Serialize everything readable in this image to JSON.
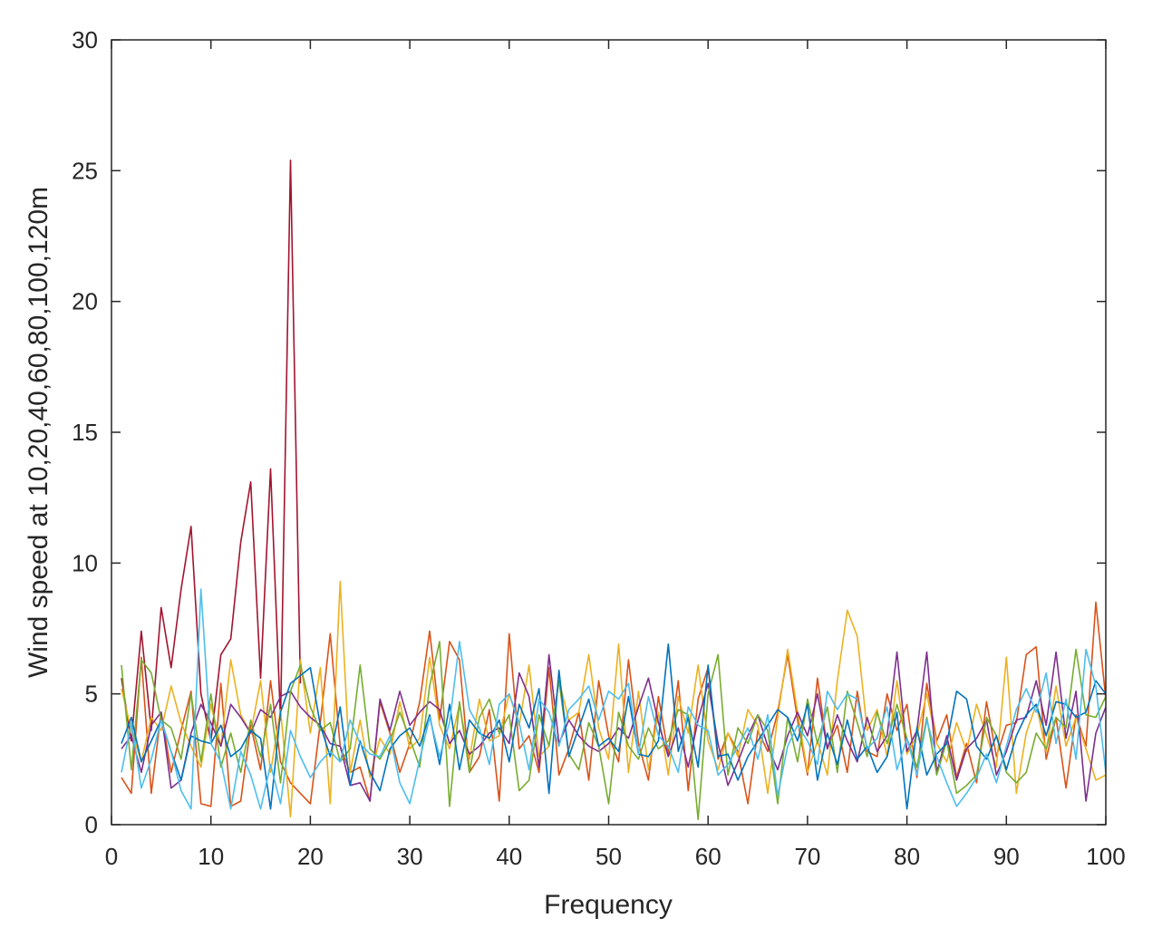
{
  "chart_data": {
    "type": "line",
    "title": "",
    "xlabel": "Frequency",
    "ylabel": "Wind speed at 10,20,40,60,80,100,120m",
    "xlim": [
      0,
      100
    ],
    "ylim": [
      0,
      30
    ],
    "xticks": [
      0,
      10,
      20,
      30,
      40,
      50,
      60,
      70,
      80,
      90,
      100
    ],
    "yticks": [
      0,
      5,
      10,
      15,
      20,
      25,
      30
    ],
    "grid": false,
    "legend": "none",
    "series": [
      {
        "color": "#A2142F",
        "x": [
          1,
          2,
          3,
          4,
          5,
          6,
          7,
          8,
          9,
          10,
          11,
          12,
          13,
          14,
          15,
          16,
          17,
          18,
          19
        ],
        "y": [
          5.6,
          3.2,
          7.4,
          3.6,
          8.3,
          6.0,
          9.0,
          11.4,
          5.0,
          3.2,
          6.5,
          7.1,
          10.8,
          13.1,
          5.6,
          13.6,
          4.0,
          25.4,
          5.4
        ]
      },
      {
        "color": "#D95319",
        "x": [
          1,
          2,
          3,
          4,
          5,
          6,
          7,
          8,
          9,
          10,
          11,
          12,
          13,
          14,
          15,
          16,
          17,
          18,
          19,
          20,
          21,
          22,
          23,
          24,
          25,
          26,
          27,
          28,
          29,
          30,
          31,
          32,
          33,
          34,
          35,
          36,
          37,
          38,
          39,
          40,
          41,
          42,
          43,
          44,
          45,
          46,
          47,
          48,
          49,
          50,
          51,
          52,
          53,
          54,
          55,
          56,
          57,
          58,
          59,
          60,
          61,
          62,
          63,
          64,
          65,
          66,
          67,
          68,
          69,
          70,
          71,
          72,
          73,
          74,
          75,
          76,
          77,
          78,
          79,
          80,
          81,
          82,
          83,
          84,
          85,
          86,
          87,
          88,
          89,
          90,
          91,
          92,
          93,
          94,
          95,
          96,
          97,
          98,
          99,
          100
        ],
        "y": [
          1.8,
          1.2,
          6.4,
          1.2,
          4.3,
          2.0,
          3.6,
          5.1,
          0.8,
          0.7,
          5.4,
          0.7,
          0.9,
          3.8,
          2.1,
          5.5,
          2.4,
          1.6,
          1.2,
          0.8,
          3.9,
          7.3,
          3.0,
          2.0,
          2.2,
          0.9,
          4.7,
          3.5,
          2.0,
          3.1,
          4.7,
          7.4,
          4.0,
          7.0,
          6.3,
          2.0,
          2.6,
          4.4,
          0.9,
          7.3,
          2.9,
          3.4,
          2.0,
          6.0,
          1.9,
          2.9,
          4.3,
          1.7,
          5.5,
          3.4,
          2.4,
          6.3,
          3.1,
          1.7,
          4.9,
          2.7,
          5.5,
          1.3,
          4.8,
          6.0,
          2.5,
          3.5,
          2.8,
          0.8,
          3.6,
          2.8,
          4.3,
          6.5,
          4.0,
          1.9,
          5.6,
          2.9,
          3.8,
          2.0,
          5.1,
          2.8,
          2.6,
          5.0,
          3.6,
          4.6,
          1.8,
          5.4,
          3.2,
          4.2,
          1.8,
          3.1,
          1.6,
          4.7,
          2.6,
          3.8,
          3.9,
          6.5,
          6.8,
          2.5,
          4.1,
          1.4,
          4.2,
          3.0,
          8.5,
          4.8
        ]
      },
      {
        "color": "#EDB120",
        "x": [
          1,
          2,
          3,
          4,
          5,
          6,
          7,
          8,
          9,
          10,
          11,
          12,
          13,
          14,
          15,
          16,
          17,
          18,
          19,
          20,
          21,
          22,
          23,
          24,
          25,
          26,
          27,
          28,
          29,
          30,
          31,
          32,
          33,
          34,
          35,
          36,
          37,
          38,
          39,
          40,
          41,
          42,
          43,
          44,
          45,
          46,
          47,
          48,
          49,
          50,
          51,
          52,
          53,
          54,
          55,
          56,
          57,
          58,
          59,
          60,
          61,
          62,
          63,
          64,
          65,
          66,
          67,
          68,
          69,
          70,
          71,
          72,
          73,
          74,
          75,
          76,
          77,
          78,
          79,
          80,
          81,
          82,
          83,
          84,
          85,
          86,
          87,
          88,
          89,
          90,
          91,
          92,
          93,
          94,
          95,
          96,
          97,
          98,
          99,
          100
        ],
        "y": [
          5.2,
          3.6,
          2.4,
          4.1,
          3.6,
          5.3,
          3.9,
          3.0,
          2.2,
          4.6,
          3.0,
          6.3,
          4.2,
          3.5,
          5.5,
          2.0,
          4.4,
          0.3,
          6.3,
          3.5,
          6.0,
          0.8,
          9.3,
          2.0,
          4.0,
          1.8,
          3.3,
          2.7,
          4.7,
          2.9,
          3.3,
          6.4,
          3.8,
          2.9,
          4.6,
          2.5,
          4.8,
          3.2,
          3.4,
          5.0,
          3.8,
          6.1,
          2.6,
          3.0,
          5.5,
          4.0,
          4.3,
          6.5,
          3.7,
          2.5,
          6.9,
          2.0,
          5.1,
          2.1,
          4.3,
          1.9,
          4.9,
          3.5,
          6.1,
          3.2,
          2.1,
          3.5,
          2.6,
          4.4,
          3.8,
          1.2,
          4.1,
          6.7,
          4.3,
          2.0,
          3.2,
          1.9,
          5.5,
          8.2,
          7.2,
          3.6,
          4.4,
          2.6,
          5.5,
          2.7,
          3.4,
          5.0,
          3.1,
          2.4,
          3.9,
          2.8,
          4.6,
          3.4,
          2.2,
          6.4,
          1.2,
          3.5,
          4.6,
          2.8,
          5.3,
          3.0,
          4.1,
          2.9,
          1.7,
          1.9
        ]
      },
      {
        "color": "#7E2F8E",
        "x": [
          1,
          2,
          3,
          4,
          5,
          6,
          7,
          8,
          9,
          10,
          11,
          12,
          13,
          14,
          15,
          16,
          17,
          18,
          19,
          20,
          21,
          22,
          23,
          24,
          25,
          26,
          27,
          28,
          29,
          30,
          31,
          32,
          33,
          34,
          35,
          36,
          37,
          38,
          39,
          40,
          41,
          42,
          43,
          44,
          45,
          46,
          47,
          48,
          49,
          50,
          51,
          52,
          53,
          54,
          55,
          56,
          57,
          58,
          59,
          60,
          61,
          62,
          63,
          64,
          65,
          66,
          67,
          68,
          69,
          70,
          71,
          72,
          73,
          74,
          75,
          76,
          77,
          78,
          79,
          80,
          81,
          82,
          83,
          84,
          85,
          86,
          87,
          88,
          89,
          90,
          91,
          92,
          93,
          94,
          95,
          96,
          97,
          98,
          99,
          100
        ],
        "y": [
          2.9,
          3.4,
          2.0,
          3.8,
          4.3,
          1.4,
          1.7,
          3.5,
          4.6,
          3.9,
          3.0,
          4.6,
          4.1,
          3.5,
          4.4,
          4.1,
          4.9,
          5.1,
          4.5,
          4.1,
          3.8,
          3.1,
          3.0,
          1.5,
          1.6,
          0.9,
          4.8,
          3.6,
          5.1,
          3.8,
          4.3,
          4.7,
          4.4,
          3.1,
          3.6,
          2.7,
          3.0,
          3.5,
          3.7,
          3.1,
          5.8,
          4.9,
          2.2,
          6.5,
          3.1,
          4.0,
          3.4,
          3.0,
          2.8,
          3.1,
          3.7,
          3.3,
          4.5,
          5.6,
          3.9,
          2.6,
          3.7,
          2.2,
          4.0,
          5.4,
          3.1,
          1.5,
          2.4,
          3.4,
          4.2,
          3.0,
          2.1,
          3.4,
          4.3,
          3.4,
          5.0,
          2.9,
          4.2,
          3.2,
          2.4,
          4.1,
          2.8,
          3.4,
          6.6,
          2.8,
          3.6,
          6.6,
          2.0,
          3.4,
          1.7,
          2.9,
          3.3,
          4.0,
          1.9,
          2.8,
          4.0,
          4.1,
          5.5,
          3.8,
          6.6,
          3.3,
          5.1,
          0.9,
          3.5,
          4.5
        ]
      },
      {
        "color": "#77AC30",
        "x": [
          1,
          2,
          3,
          4,
          5,
          6,
          7,
          8,
          9,
          10,
          11,
          12,
          13,
          14,
          15,
          16,
          17,
          18,
          19,
          20,
          21,
          22,
          23,
          24,
          25,
          26,
          27,
          28,
          29,
          30,
          31,
          32,
          33,
          34,
          35,
          36,
          37,
          38,
          39,
          40,
          41,
          42,
          43,
          44,
          45,
          46,
          47,
          48,
          49,
          50,
          51,
          52,
          53,
          54,
          55,
          56,
          57,
          58,
          59,
          60,
          61,
          62,
          63,
          64,
          65,
          66,
          67,
          68,
          69,
          70,
          71,
          72,
          73,
          74,
          75,
          76,
          77,
          78,
          79,
          80,
          81,
          82,
          83,
          84,
          85,
          86,
          87,
          88,
          89,
          90,
          91,
          92,
          93,
          94,
          95,
          96,
          97,
          98,
          99,
          100
        ],
        "y": [
          6.1,
          2.1,
          6.3,
          5.8,
          4.0,
          3.7,
          2.5,
          5.0,
          2.4,
          5.0,
          2.2,
          3.5,
          2.0,
          4.0,
          2.6,
          4.6,
          1.6,
          5.1,
          6.1,
          4.5,
          3.6,
          3.9,
          2.4,
          2.9,
          6.1,
          2.9,
          2.5,
          3.2,
          4.3,
          3.3,
          2.2,
          5.3,
          7.0,
          0.7,
          4.7,
          2.0,
          4.1,
          4.8,
          3.5,
          4.2,
          1.3,
          1.7,
          4.2,
          3.0,
          5.5,
          2.7,
          2.1,
          3.9,
          3.0,
          0.8,
          4.3,
          3.0,
          2.5,
          3.7,
          2.9,
          3.2,
          4.4,
          4.2,
          0.2,
          5.0,
          6.5,
          1.9,
          3.7,
          3.1,
          4.2,
          3.6,
          0.8,
          4.1,
          2.4,
          4.8,
          3.1,
          4.5,
          2.0,
          5.1,
          3.9,
          2.6,
          4.3,
          3.1,
          4.6,
          3.3,
          2.2,
          4.1,
          1.9,
          3.2,
          1.2,
          1.5,
          1.9,
          4.1,
          3.4,
          2.0,
          1.6,
          2.0,
          3.5,
          2.9,
          4.1,
          3.7,
          6.7,
          4.2,
          4.1,
          4.9
        ]
      },
      {
        "color": "#0072BD",
        "x": [
          1,
          2,
          3,
          4,
          5,
          6,
          7,
          8,
          9,
          10,
          11,
          12,
          13,
          14,
          15,
          16,
          17,
          18,
          19,
          20,
          21,
          22,
          23,
          24,
          25,
          26,
          27,
          28,
          29,
          30,
          31,
          32,
          33,
          34,
          35,
          36,
          37,
          38,
          39,
          40,
          41,
          42,
          43,
          44,
          45,
          46,
          47,
          48,
          49,
          50,
          51,
          52,
          53,
          54,
          55,
          56,
          57,
          58,
          59,
          60,
          61,
          62,
          63,
          64,
          65,
          66,
          67,
          68,
          69,
          70,
          71,
          72,
          73,
          74,
          75,
          76,
          77,
          78,
          79,
          80,
          81,
          82,
          83,
          84,
          85,
          86,
          87,
          88,
          89,
          90,
          91,
          92,
          93,
          94,
          95,
          96,
          97,
          98,
          99,
          100
        ],
        "y": [
          3.1,
          4.1,
          2.4,
          3.2,
          4.0,
          2.8,
          1.7,
          3.4,
          3.2,
          3.1,
          3.8,
          2.6,
          2.9,
          3.6,
          3.3,
          0.6,
          4.3,
          5.4,
          5.7,
          6.0,
          3.8,
          2.6,
          4.5,
          1.5,
          3.2,
          2.0,
          1.3,
          2.9,
          3.4,
          3.7,
          3.0,
          4.2,
          2.3,
          4.6,
          2.1,
          4.0,
          3.5,
          3.3,
          4.0,
          2.4,
          4.6,
          3.7,
          5.2,
          1.2,
          5.9,
          2.6,
          3.7,
          4.8,
          3.0,
          3.3,
          2.8,
          4.9,
          2.7,
          2.6,
          3.2,
          6.9,
          2.8,
          4.1,
          2.2,
          6.1,
          2.6,
          2.7,
          1.7,
          2.6,
          3.2,
          3.8,
          4.4,
          4.1,
          3.2,
          4.6,
          1.7,
          3.5,
          2.3,
          4.0,
          2.5,
          3.0,
          2.0,
          2.6,
          4.3,
          0.6,
          3.7,
          1.9,
          2.7,
          3.1,
          5.1,
          4.8,
          3.0,
          2.5,
          3.4,
          2.1,
          3.4,
          4.2,
          4.6,
          3.4,
          4.7,
          4.6,
          4.1,
          4.3,
          5.5,
          5.0
        ]
      },
      {
        "color": "#4DBEEE",
        "x": [
          1,
          2,
          3,
          4,
          5,
          6,
          7,
          8,
          9,
          10,
          11,
          12,
          13,
          14,
          15,
          16,
          17,
          18,
          19,
          20,
          21,
          22,
          23,
          24,
          25,
          26,
          27,
          28,
          29,
          30,
          31,
          32,
          33,
          34,
          35,
          36,
          37,
          38,
          39,
          40,
          41,
          42,
          43,
          44,
          45,
          46,
          47,
          48,
          49,
          50,
          51,
          52,
          53,
          54,
          55,
          56,
          57,
          58,
          59,
          60,
          61,
          62,
          63,
          64,
          65,
          66,
          67,
          68,
          69,
          70,
          71,
          72,
          73,
          74,
          75,
          76,
          77,
          78,
          79,
          80,
          81,
          82,
          83,
          84,
          85,
          86,
          87,
          88,
          89,
          90,
          91,
          92,
          93,
          94,
          95,
          96,
          97,
          98,
          99,
          100
        ],
        "y": [
          2.0,
          3.9,
          1.4,
          2.5,
          4.0,
          2.8,
          1.3,
          0.6,
          9.0,
          3.1,
          2.4,
          0.6,
          2.8,
          1.9,
          0.6,
          2.3,
          0.8,
          3.6,
          2.6,
          1.8,
          2.4,
          2.8,
          2.4,
          4.0,
          3.1,
          2.7,
          2.6,
          3.4,
          1.6,
          0.8,
          2.5,
          4.1,
          2.6,
          3.9,
          7.0,
          4.4,
          3.7,
          2.3,
          4.6,
          5.0,
          3.9,
          2.1,
          4.8,
          4.3,
          3.0,
          4.4,
          4.8,
          5.3,
          4.0,
          5.1,
          4.8,
          5.4,
          2.7,
          4.9,
          3.4,
          3.0,
          2.0,
          4.5,
          3.8,
          3.6,
          1.9,
          2.3,
          3.0,
          3.7,
          2.5,
          4.2,
          1.1,
          3.0,
          3.8,
          3.2,
          2.3,
          5.1,
          4.4,
          5.0,
          4.8,
          2.9,
          3.3,
          4.5,
          2.1,
          3.3,
          1.9,
          4.0,
          2.6,
          1.6,
          0.7,
          1.2,
          1.8,
          2.7,
          1.6,
          3.0,
          4.4,
          5.2,
          4.3,
          5.8,
          3.1,
          4.8,
          2.5,
          6.7,
          5.3,
          2.0
        ]
      }
    ]
  }
}
